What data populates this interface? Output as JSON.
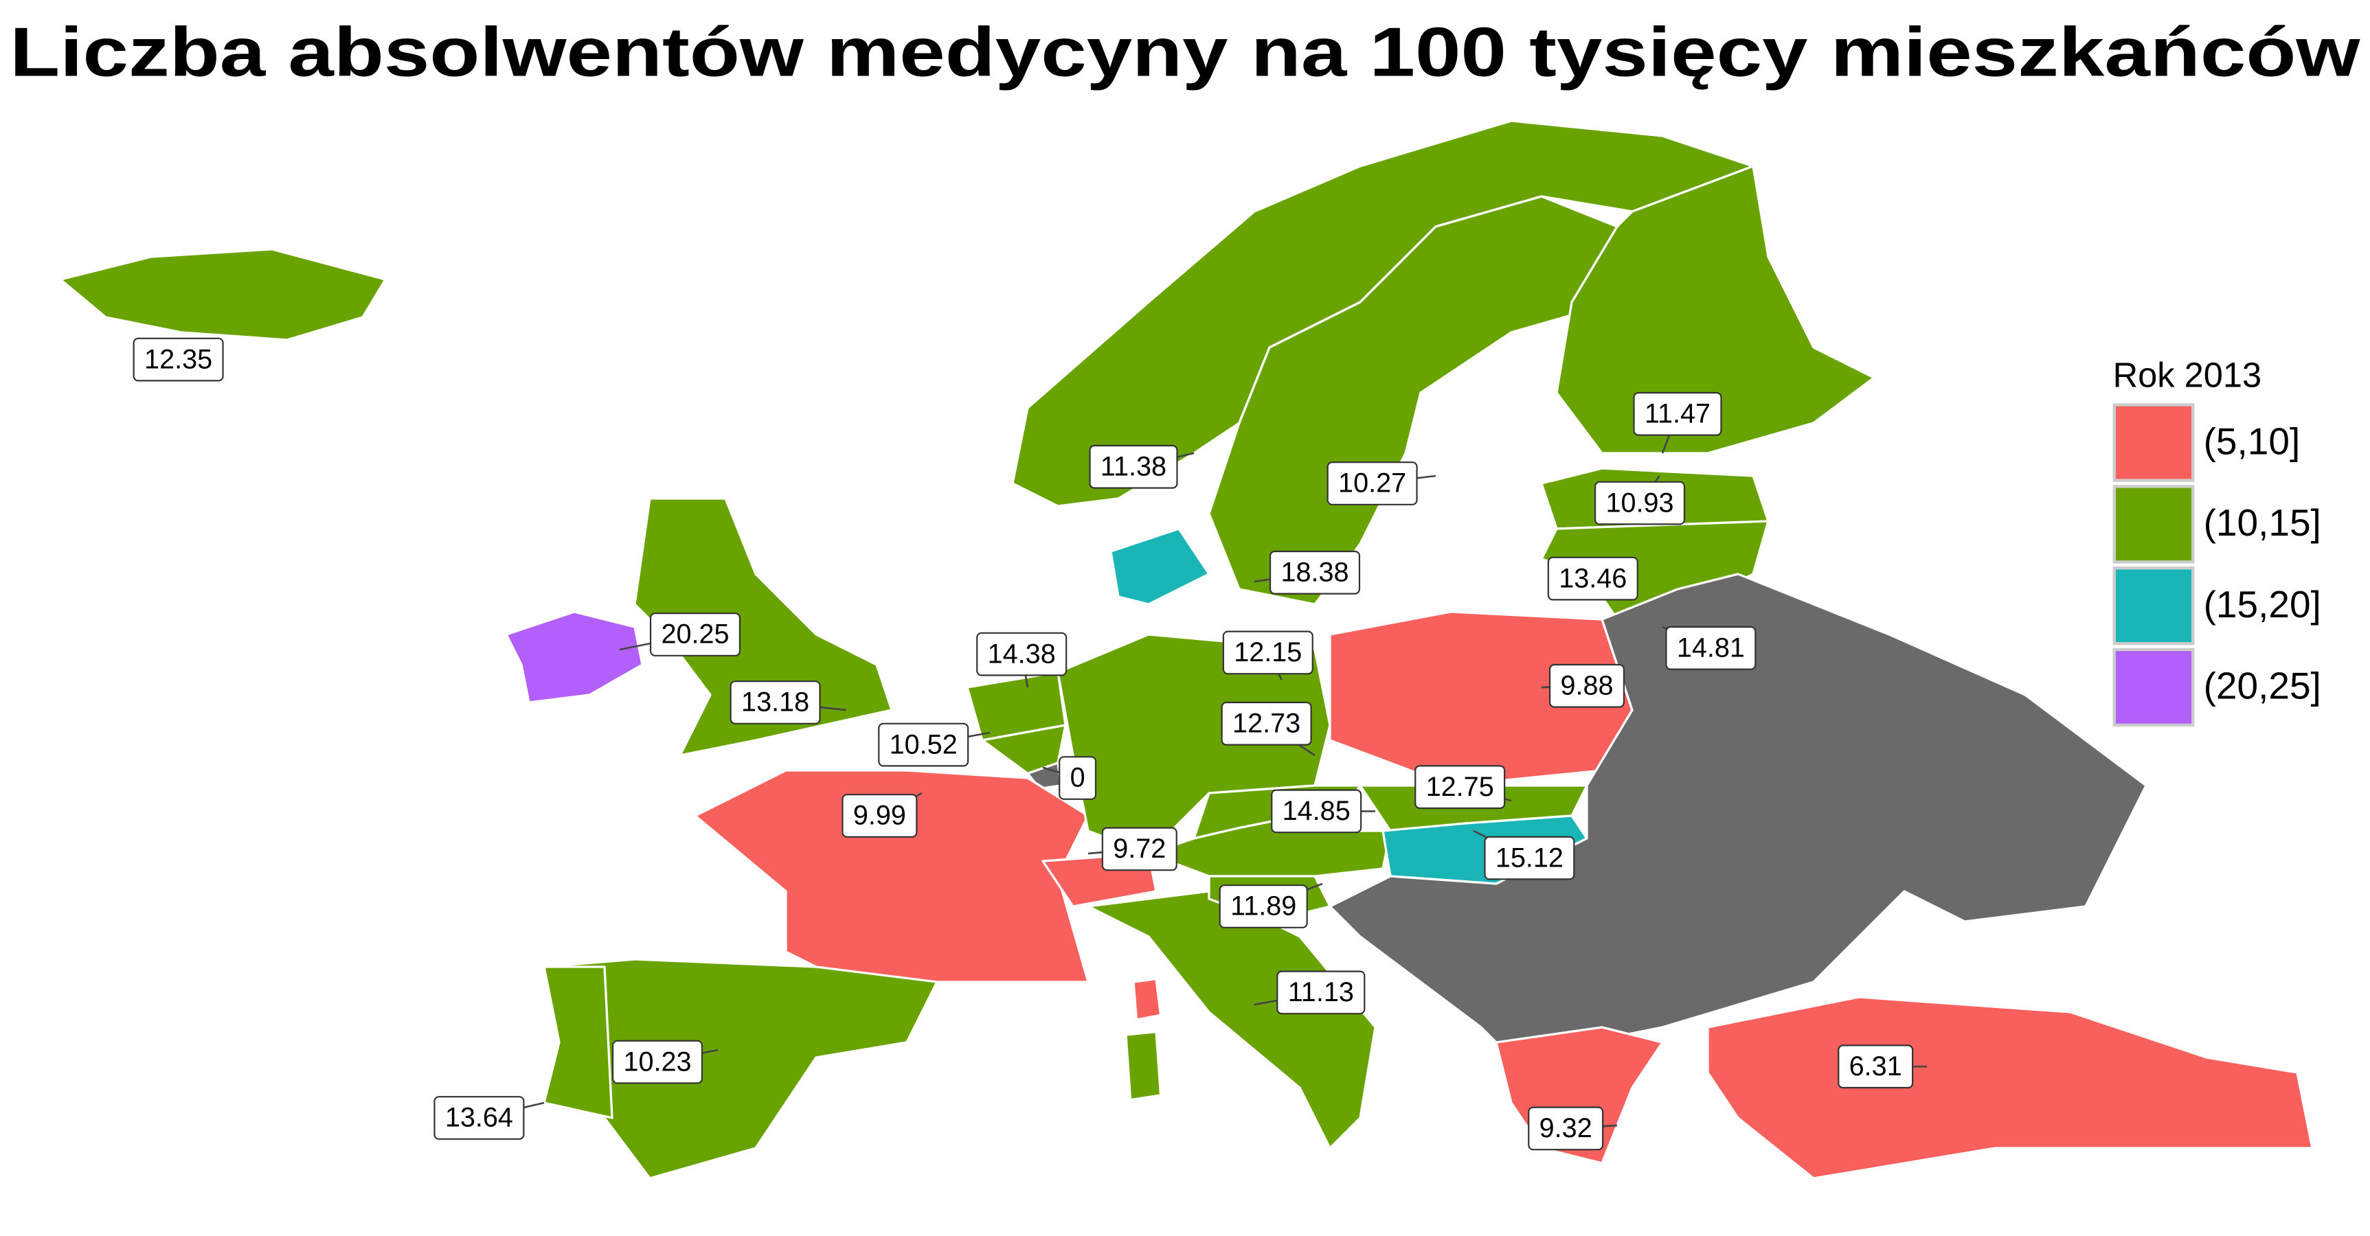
{
  "chart_data": {
    "type": "map",
    "title": "Liczba absolwentów medycyny na 100 tysięcy mieszkańców",
    "values": [
      12.35,
      11.38,
      10.27,
      11.47,
      10.93,
      18.38,
      13.46,
      20.25,
      14.38,
      12.15,
      14.81,
      13.18,
      10.52,
      0,
      12.73,
      9.88,
      9.99,
      14.85,
      12.75,
      9.72,
      15.12,
      11.89,
      11.13,
      10.23,
      13.64,
      6.31,
      9.32
    ],
    "legend": {
      "title": "Rok 2013",
      "items": [
        {
          "label": "(5,10]",
          "color": "#f8605e"
        },
        {
          "label": "(10,15]",
          "color": "#68a300"
        },
        {
          "label": "(15,20]",
          "color": "#19b5b7"
        },
        {
          "label": "(20,25]",
          "color": "#b35ffb"
        }
      ]
    },
    "missing_color": "#6a6a6a"
  }
}
